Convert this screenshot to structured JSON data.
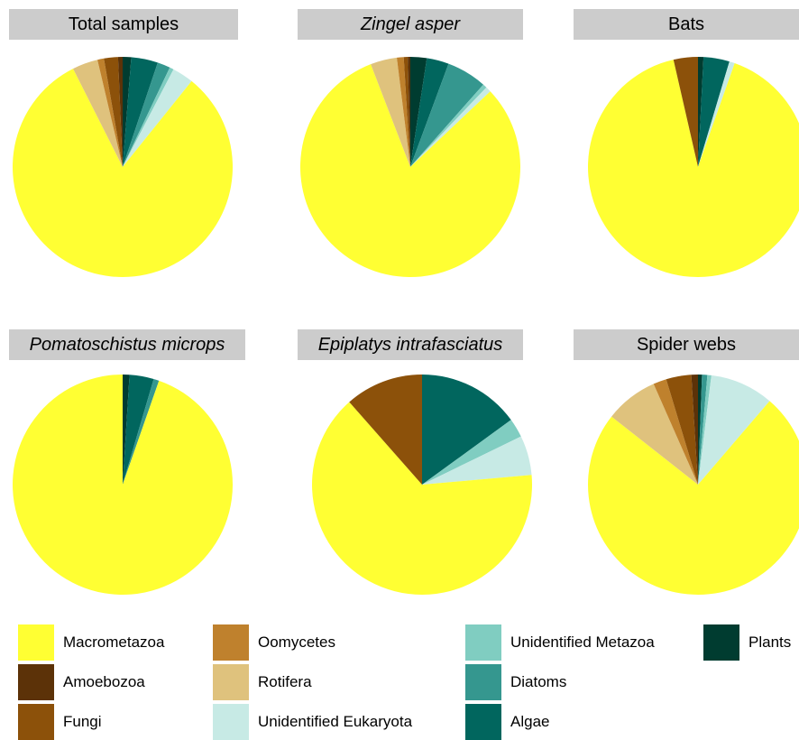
{
  "chart_data": [
    {
      "type": "pie",
      "title": "Total samples",
      "title_italic": false,
      "slices": [
        {
          "label": "Plants",
          "value": 0.0125
        },
        {
          "label": "Algae",
          "value": 0.0392
        },
        {
          "label": "Diatoms",
          "value": 0.0188
        },
        {
          "label": "Unidentified Metazoa",
          "value": 0.006
        },
        {
          "label": "Unidentified Eukaryota",
          "value": 0.0313
        },
        {
          "label": "Macrometazoa",
          "value": 0.8178
        },
        {
          "label": "Rotifera",
          "value": 0.0376
        },
        {
          "label": "Oomycetes",
          "value": 0.0095
        },
        {
          "label": "Fungi",
          "value": 0.0206
        },
        {
          "label": "Amoebozoa",
          "value": 0.0067
        }
      ]
    },
    {
      "type": "pie",
      "title": "Zingel asper",
      "title_italic": true,
      "slices": [
        {
          "label": "Plants",
          "value": 0.024
        },
        {
          "label": "Algae",
          "value": 0.0325
        },
        {
          "label": "Diatoms",
          "value": 0.059
        },
        {
          "label": "Unidentified Metazoa",
          "value": 0.006
        },
        {
          "label": "Unidentified Eukaryota",
          "value": 0.008
        },
        {
          "label": "Macrometazoa",
          "value": 0.8119
        },
        {
          "label": "Rotifera",
          "value": 0.039
        },
        {
          "label": "Oomycetes",
          "value": 0.01
        },
        {
          "label": "Fungi",
          "value": 0.006
        },
        {
          "label": "Amoebozoa",
          "value": 0.0036
        }
      ]
    },
    {
      "type": "pie",
      "title": "Bats",
      "title_italic": false,
      "slices": [
        {
          "label": "Plants",
          "value": 0.008
        },
        {
          "label": "Algae",
          "value": 0.0381
        },
        {
          "label": "Unidentified Eukaryota",
          "value": 0.008
        },
        {
          "label": "Macrometazoa",
          "value": 0.9101
        },
        {
          "label": "Fungi",
          "value": 0.0358
        }
      ]
    },
    {
      "type": "pie",
      "title": "Pomatoschistus microps",
      "title_italic": true,
      "slices": [
        {
          "label": "Plants",
          "value": 0.01
        },
        {
          "label": "Algae",
          "value": 0.0356
        },
        {
          "label": "Diatoms",
          "value": 0.008
        },
        {
          "label": "Macrometazoa",
          "value": 0.9464
        }
      ]
    },
    {
      "type": "pie",
      "title": "Epiplatys intrafasciatus",
      "title_italic": true,
      "slices": [
        {
          "label": "Algae",
          "value": 0.15
        },
        {
          "label": "Unidentified Metazoa",
          "value": 0.028
        },
        {
          "label": "Unidentified Eukaryota",
          "value": 0.058
        },
        {
          "label": "Macrometazoa",
          "value": 0.649
        },
        {
          "label": "Fungi",
          "value": 0.115
        }
      ]
    },
    {
      "type": "pie",
      "title": "Spider webs",
      "title_italic": false,
      "slices": [
        {
          "label": "Plants",
          "value": 0.006
        },
        {
          "label": "Diatoms",
          "value": 0.008
        },
        {
          "label": "Unidentified Metazoa",
          "value": 0.006
        },
        {
          "label": "Unidentified Eukaryota",
          "value": 0.096
        },
        {
          "label": "Macrometazoa",
          "value": 0.764
        },
        {
          "label": "Rotifera",
          "value": 0.08
        },
        {
          "label": "Oomycetes",
          "value": 0.02
        },
        {
          "label": "Fungi",
          "value": 0.038
        },
        {
          "label": "Amoebozoa",
          "value": 0.01
        }
      ]
    }
  ],
  "legend": [
    {
      "label": "Macrometazoa",
      "color": "#FFFF33"
    },
    {
      "label": "Amoebozoa",
      "color": "#5C3208"
    },
    {
      "label": "Fungi",
      "color": "#8C510A"
    },
    {
      "label": "Oomycetes",
      "color": "#BF812D"
    },
    {
      "label": "Rotifera",
      "color": "#DFC27D"
    },
    {
      "label": "Unidentified Eukaryota",
      "color": "#C7EAE5"
    },
    {
      "label": "Unidentified Metazoa",
      "color": "#80CDC1"
    },
    {
      "label": "Diatoms",
      "color": "#35978F"
    },
    {
      "label": "Algae",
      "color": "#01665E"
    },
    {
      "label": "Plants",
      "color": "#003C30"
    }
  ]
}
